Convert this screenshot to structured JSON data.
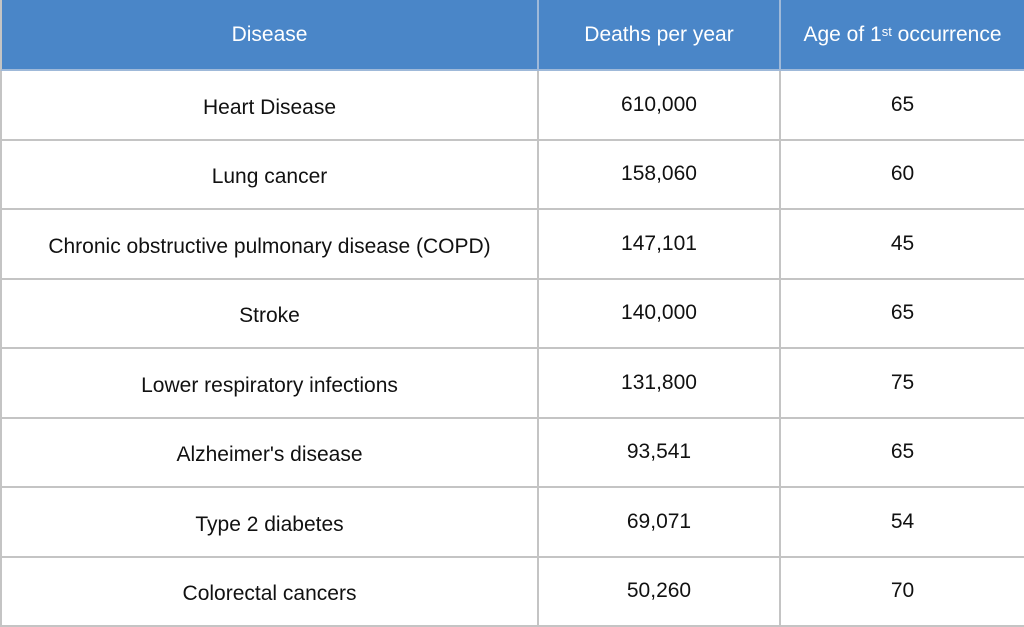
{
  "table": {
    "header": [
      "Disease",
      "Deaths per year",
      {
        "main": "Age of 1",
        "sup": "st",
        "rest": " occurrence"
      }
    ],
    "rows": [
      [
        "Heart Disease",
        "610,000",
        65
      ],
      [
        "Lung cancer",
        "158,060",
        60
      ],
      [
        "Chronic obstructive pulmonary disease (COPD)",
        "147,101",
        45
      ],
      [
        "Stroke",
        "140,000",
        65
      ],
      [
        "Lower respiratory infections",
        "131,800",
        75
      ],
      [
        "Alzheimer's disease",
        "93,541",
        65
      ],
      [
        "Type 2 diabetes",
        "69,071",
        54
      ],
      [
        "Colorectal cancers",
        "50,260",
        70
      ]
    ]
  }
}
